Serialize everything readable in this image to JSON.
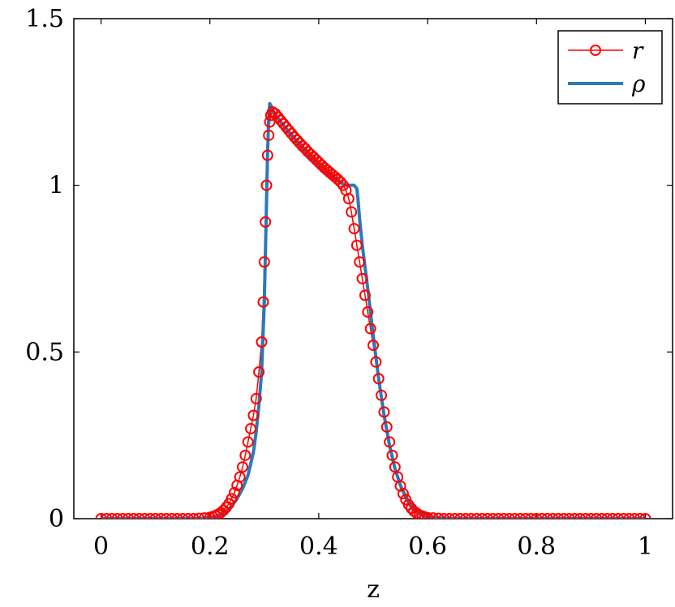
{
  "chart_data": {
    "type": "line",
    "title": "",
    "xlabel": "z",
    "ylabel": "",
    "xlim": [
      -0.05,
      1.05
    ],
    "ylim": [
      0,
      1.5
    ],
    "xticks": [
      0,
      0.2,
      0.4,
      0.6,
      0.8,
      1
    ],
    "xtick_labels": [
      "0",
      "0.2",
      "0.4",
      "0.6",
      "0.8",
      "1"
    ],
    "yticks": [
      0,
      0.5,
      1,
      1.5
    ],
    "ytick_labels": [
      "0",
      "0.5",
      "1",
      "1.5"
    ],
    "grid": false,
    "legend_position": "top-right",
    "series": [
      {
        "name": "r",
        "color": "#ff0000",
        "style": "line-with-circle-markers",
        "x": [
          0,
          0.01,
          0.02,
          0.03,
          0.04,
          0.05,
          0.06,
          0.07,
          0.08,
          0.09,
          0.1,
          0.11,
          0.12,
          0.13,
          0.14,
          0.15,
          0.16,
          0.17,
          0.18,
          0.19,
          0.2,
          0.205,
          0.21,
          0.215,
          0.22,
          0.225,
          0.23,
          0.235,
          0.24,
          0.245,
          0.25,
          0.255,
          0.26,
          0.265,
          0.27,
          0.275,
          0.28,
          0.285,
          0.29,
          0.295,
          0.298,
          0.3,
          0.302,
          0.304,
          0.306,
          0.308,
          0.31,
          0.312,
          0.315,
          0.32,
          0.325,
          0.33,
          0.335,
          0.34,
          0.345,
          0.35,
          0.355,
          0.36,
          0.365,
          0.37,
          0.375,
          0.38,
          0.385,
          0.39,
          0.395,
          0.4,
          0.405,
          0.41,
          0.415,
          0.42,
          0.425,
          0.43,
          0.435,
          0.44,
          0.445,
          0.45,
          0.455,
          0.46,
          0.465,
          0.47,
          0.475,
          0.48,
          0.485,
          0.49,
          0.495,
          0.5,
          0.505,
          0.51,
          0.515,
          0.52,
          0.525,
          0.53,
          0.535,
          0.54,
          0.545,
          0.55,
          0.555,
          0.56,
          0.565,
          0.57,
          0.575,
          0.58,
          0.585,
          0.59,
          0.595,
          0.6,
          0.61,
          0.62,
          0.63,
          0.64,
          0.65,
          0.66,
          0.67,
          0.68,
          0.69,
          0.7,
          0.71,
          0.72,
          0.73,
          0.74,
          0.75,
          0.76,
          0.77,
          0.78,
          0.79,
          0.8,
          0.81,
          0.82,
          0.83,
          0.84,
          0.85,
          0.86,
          0.87,
          0.88,
          0.89,
          0.9,
          0.91,
          0.92,
          0.93,
          0.94,
          0.95,
          0.96,
          0.97,
          0.98,
          0.99,
          1.0
        ],
        "y": [
          0,
          0,
          0,
          0,
          0,
          0,
          0,
          0,
          0,
          0,
          0,
          0,
          0,
          0,
          0,
          0,
          0,
          0,
          0.001,
          0.002,
          0.004,
          0.006,
          0.009,
          0.013,
          0.018,
          0.025,
          0.034,
          0.045,
          0.06,
          0.078,
          0.1,
          0.125,
          0.155,
          0.19,
          0.23,
          0.27,
          0.31,
          0.36,
          0.44,
          0.53,
          0.65,
          0.77,
          0.89,
          1.0,
          1.09,
          1.15,
          1.19,
          1.21,
          1.22,
          1.215,
          1.205,
          1.195,
          1.185,
          1.175,
          1.165,
          1.155,
          1.145,
          1.136,
          1.127,
          1.118,
          1.11,
          1.101,
          1.093,
          1.085,
          1.077,
          1.069,
          1.061,
          1.053,
          1.046,
          1.039,
          1.032,
          1.025,
          1.018,
          1.01,
          1.0,
          0.985,
          0.96,
          0.92,
          0.87,
          0.82,
          0.77,
          0.72,
          0.67,
          0.62,
          0.57,
          0.52,
          0.47,
          0.42,
          0.37,
          0.32,
          0.275,
          0.23,
          0.19,
          0.155,
          0.125,
          0.098,
          0.075,
          0.057,
          0.042,
          0.031,
          0.022,
          0.016,
          0.011,
          0.008,
          0.005,
          0.003,
          0.002,
          0.001,
          0,
          0,
          0,
          0,
          0,
          0,
          0,
          0,
          0,
          0,
          0,
          0,
          0,
          0,
          0,
          0,
          0,
          0,
          0,
          0,
          0,
          0,
          0,
          0,
          0,
          0,
          0,
          0,
          0,
          0,
          0,
          0,
          0,
          0,
          0,
          0,
          0,
          0
        ]
      },
      {
        "name": "ρ",
        "color": "#2a7ab9",
        "style": "line",
        "x": [
          0,
          0.1,
          0.18,
          0.2,
          0.21,
          0.22,
          0.23,
          0.24,
          0.25,
          0.26,
          0.27,
          0.28,
          0.285,
          0.29,
          0.295,
          0.3,
          0.302,
          0.304,
          0.306,
          0.308,
          0.31,
          0.312,
          0.315,
          0.32,
          0.33,
          0.34,
          0.35,
          0.36,
          0.37,
          0.38,
          0.39,
          0.4,
          0.41,
          0.42,
          0.43,
          0.44,
          0.45,
          0.46,
          0.465,
          0.47,
          0.472,
          0.475,
          0.48,
          0.49,
          0.5,
          0.51,
          0.52,
          0.53,
          0.54,
          0.55,
          0.56,
          0.57,
          0.58,
          0.59,
          0.6,
          0.62,
          0.64,
          0.7,
          0.8,
          0.9,
          1.0
        ],
        "y": [
          0,
          0,
          0.001,
          0.003,
          0.006,
          0.012,
          0.022,
          0.038,
          0.06,
          0.09,
          0.13,
          0.2,
          0.26,
          0.34,
          0.44,
          0.65,
          0.8,
          0.95,
          1.1,
          1.2,
          1.245,
          1.24,
          1.225,
          1.21,
          1.19,
          1.17,
          1.15,
          1.13,
          1.11,
          1.092,
          1.075,
          1.058,
          1.043,
          1.03,
          1.018,
          1.008,
          1.0,
          1.0,
          1.0,
          0.99,
          0.96,
          0.9,
          0.82,
          0.69,
          0.55,
          0.42,
          0.31,
          0.22,
          0.15,
          0.1,
          0.065,
          0.04,
          0.024,
          0.013,
          0.007,
          0.002,
          0.0005,
          0,
          0,
          0,
          0
        ]
      }
    ]
  }
}
